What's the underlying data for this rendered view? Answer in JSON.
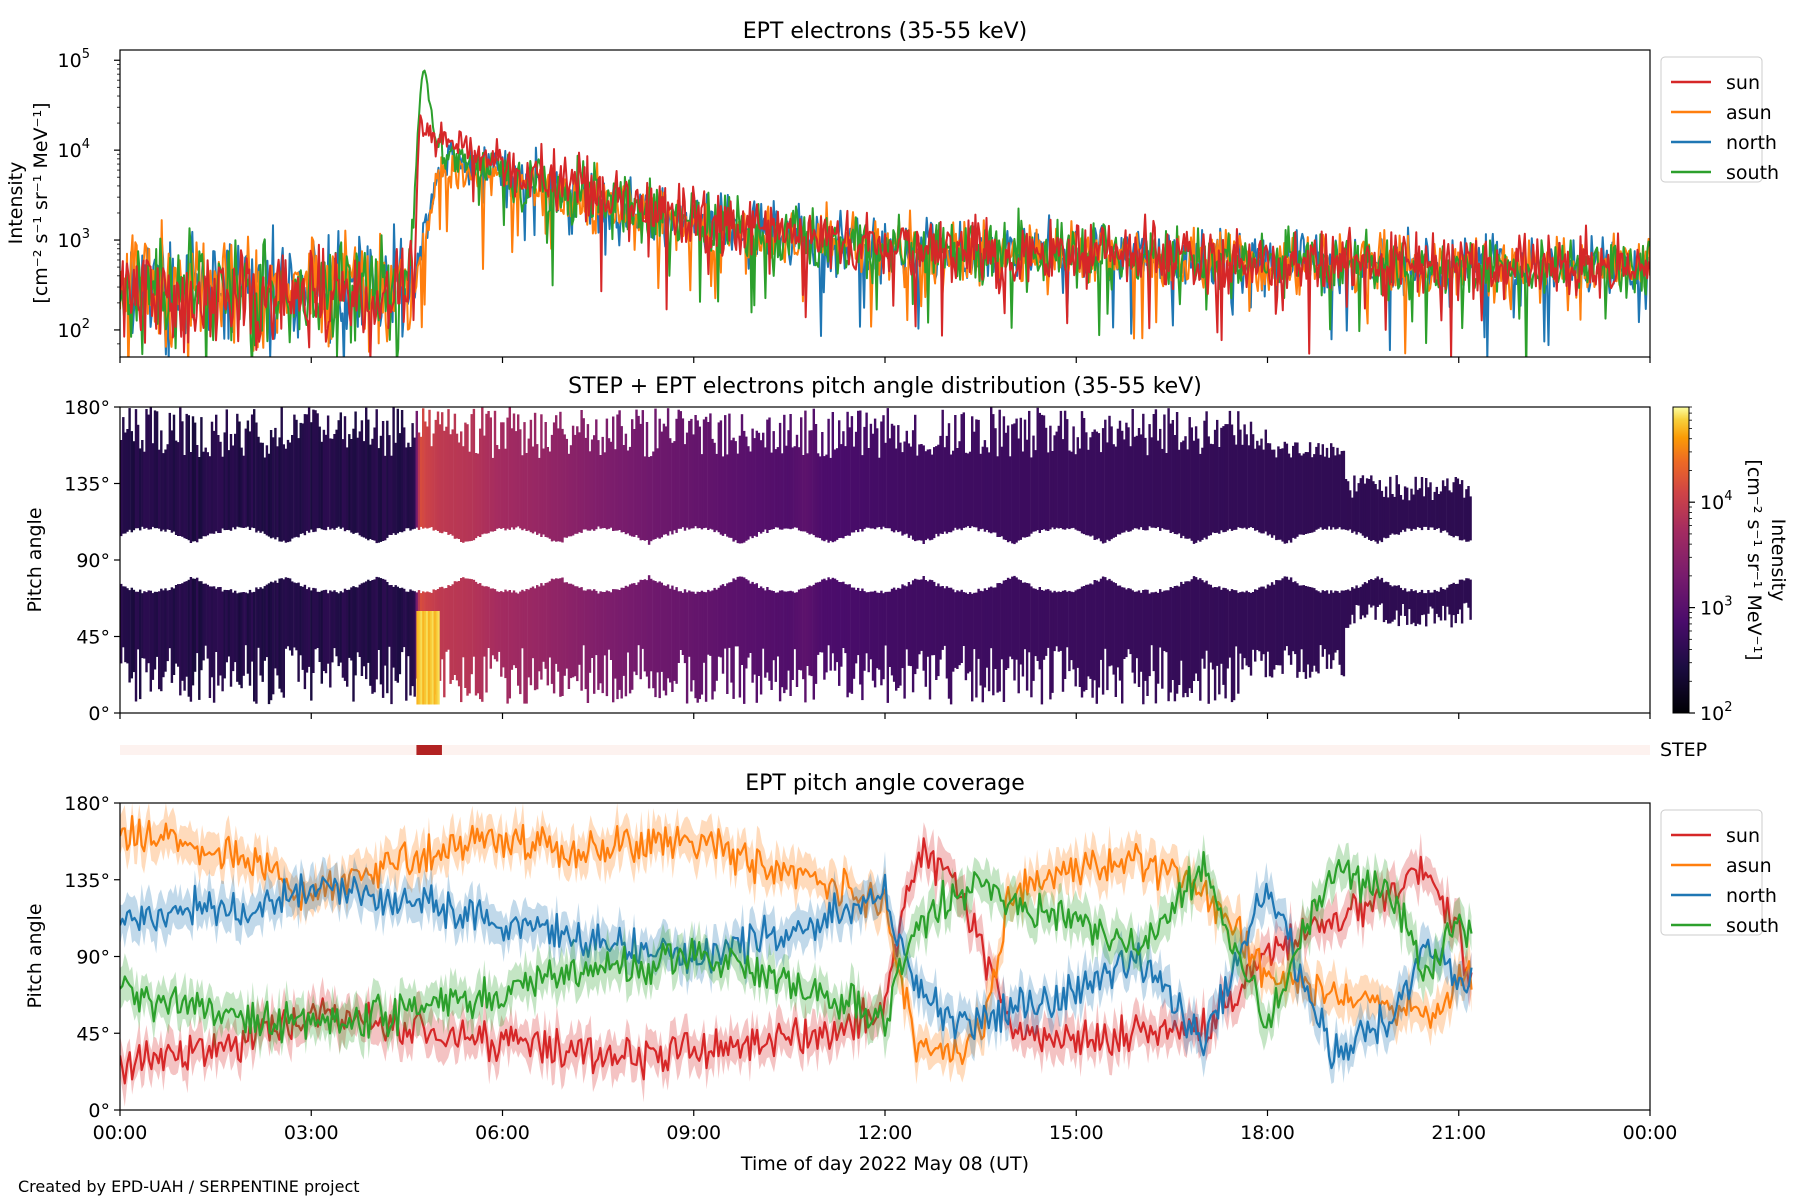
{
  "footer": {
    "credit": "Created by EPD-UAH / SERPENTINE project"
  },
  "colors": {
    "sun": "#d62728",
    "asun": "#ff7f0e",
    "north": "#1f77b4",
    "south": "#2ca02c",
    "step_bar": "#b22222",
    "step_track": "#fdf2ef"
  },
  "chart_data": [
    {
      "type": "line",
      "title": "EPT electrons (35-55 keV)",
      "xlabel": "",
      "ylabel": "Intensity",
      "ylabel_units": "[cm⁻² s⁻¹ sr⁻¹ MeV⁻¹]",
      "yscale": "log",
      "ylim": [
        50,
        130000
      ],
      "xlim_hours": [
        0,
        24
      ],
      "x_tick_labels": [
        "00:00",
        "03:00",
        "06:00",
        "09:00",
        "12:00",
        "15:00",
        "18:00",
        "21:00",
        "00:00"
      ],
      "y_tick_labels": [
        {
          "value": 100,
          "base": "10",
          "exp": "2"
        },
        {
          "value": 1000,
          "base": "10",
          "exp": "3"
        },
        {
          "value": 10000,
          "base": "10",
          "exp": "4"
        },
        {
          "value": 100000,
          "base": "10",
          "exp": "5"
        }
      ],
      "legend_position": "outside-right",
      "series": [
        {
          "name": "sun",
          "color": "#d62728",
          "x": [
            0,
            0.5,
            1,
            1.5,
            2,
            2.5,
            3,
            3.5,
            4,
            4.5,
            4.62,
            4.7,
            4.8,
            5.0,
            5.2,
            5.5,
            6,
            6.5,
            7,
            7.5,
            8,
            8.5,
            9,
            9.5,
            10,
            10.5,
            10.75,
            11,
            11.5,
            12,
            12.5,
            13,
            13.5,
            14,
            14.5,
            15,
            15.5,
            16,
            16.5,
            17,
            17.5,
            18,
            18.5,
            19,
            19.5,
            20,
            20.5,
            21,
            21.5,
            22,
            22.5,
            23,
            23.5,
            24
          ],
          "y": [
            220,
            240,
            230,
            250,
            240,
            250,
            240,
            250,
            240,
            250,
            500,
            20000,
            16000,
            12000,
            11000,
            10000,
            7000,
            5500,
            4200,
            3200,
            2600,
            2100,
            1800,
            1500,
            1300,
            1150,
            1500,
            1050,
            950,
            850,
            800,
            780,
            760,
            740,
            720,
            700,
            680,
            660,
            640,
            620,
            600,
            590,
            580,
            570,
            560,
            550,
            540,
            530,
            520,
            520,
            520,
            520,
            520,
            520
          ]
        },
        {
          "name": "asun",
          "color": "#ff7f0e",
          "x": [
            0,
            0.5,
            1,
            1.5,
            2,
            2.5,
            3,
            3.5,
            4,
            4.5,
            4.62,
            4.8,
            5.0,
            5.2,
            5.5,
            6,
            6.5,
            7,
            7.5,
            8,
            8.5,
            9,
            9.5,
            10,
            10.5,
            11,
            11.5,
            12,
            12.5,
            13,
            13.5,
            14,
            14.5,
            15,
            15.5,
            16,
            16.5,
            17,
            17.5,
            18,
            18.5,
            19,
            19.5,
            20,
            20.5,
            21,
            21.5,
            22,
            22.5,
            23,
            23.5,
            24
          ],
          "y": [
            300,
            320,
            300,
            320,
            310,
            320,
            310,
            320,
            310,
            320,
            330,
            1200,
            5000,
            6500,
            6000,
            5000,
            4000,
            3200,
            2500,
            2000,
            1700,
            1450,
            1250,
            1100,
            1000,
            920,
            860,
            800,
            770,
            750,
            730,
            710,
            690,
            670,
            650,
            630,
            610,
            590,
            570,
            560,
            550,
            540,
            530,
            520,
            510,
            500,
            500,
            500,
            500,
            500,
            500,
            500
          ]
        },
        {
          "name": "north",
          "color": "#1f77b4",
          "x": [
            0,
            0.5,
            1,
            1.5,
            2,
            2.5,
            3,
            3.5,
            4,
            4.5,
            4.62,
            4.8,
            5.0,
            5.2,
            5.5,
            6,
            6.5,
            7,
            7.5,
            8,
            8.5,
            9,
            9.5,
            10,
            10.5,
            11,
            11.5,
            12,
            12.5,
            13,
            13.5,
            14,
            14.5,
            15,
            15.5,
            16,
            16.5,
            17,
            17.5,
            18,
            18.5,
            19,
            19.5,
            20,
            20.5,
            21,
            21.5,
            22,
            22.5,
            23,
            23.5,
            24
          ],
          "y": [
            300,
            320,
            300,
            320,
            310,
            320,
            310,
            320,
            310,
            320,
            330,
            1500,
            6000,
            7500,
            7000,
            5800,
            4500,
            3500,
            2700,
            2200,
            1850,
            1550,
            1350,
            1200,
            1050,
            950,
            880,
            820,
            790,
            760,
            740,
            720,
            700,
            680,
            660,
            640,
            620,
            600,
            580,
            570,
            560,
            550,
            540,
            530,
            520,
            510,
            510,
            510,
            510,
            510,
            520,
            520
          ]
        },
        {
          "name": "south",
          "color": "#2ca02c",
          "x": [
            0,
            0.5,
            1,
            1.5,
            2,
            2.5,
            3,
            3.5,
            4,
            4.5,
            4.62,
            4.7,
            4.75,
            4.85,
            5.0,
            5.2,
            5.5,
            6,
            6.5,
            7,
            7.5,
            8,
            8.5,
            9,
            9.5,
            10,
            10.5,
            11,
            11.5,
            12,
            12.5,
            13,
            13.5,
            14,
            14.5,
            15,
            15.5,
            16,
            16.5,
            17,
            17.5,
            18,
            18.5,
            19,
            19.5,
            20,
            20.5,
            21,
            21.5,
            22,
            22.5,
            23,
            23.5,
            24
          ],
          "y": [
            290,
            300,
            290,
            300,
            300,
            300,
            300,
            300,
            300,
            310,
            2000,
            40000,
            90000,
            30000,
            12000,
            9000,
            7500,
            6000,
            4800,
            3700,
            2800,
            2200,
            1850,
            1550,
            1350,
            1200,
            1050,
            950,
            880,
            820,
            780,
            750,
            730,
            710,
            690,
            670,
            650,
            630,
            610,
            590,
            570,
            560,
            550,
            540,
            530,
            520,
            510,
            500,
            500,
            500,
            500,
            500,
            500,
            500
          ]
        }
      ]
    },
    {
      "type": "heatmap",
      "title": "STEP + EPT electrons pitch angle distribution (35-55 keV)",
      "xlabel": "",
      "ylabel": "Pitch angle",
      "ylim": [
        0,
        180
      ],
      "y_tick_labels": [
        "0°",
        "45°",
        "90°",
        "135°",
        "180°"
      ],
      "colorbar": {
        "label": "Intensity",
        "units": "[cm⁻² s⁻¹ sr⁻¹ MeV⁻¹]",
        "scale": "log",
        "range": [
          100,
          80000
        ],
        "ticks": [
          {
            "base": "10",
            "exp": "2"
          },
          {
            "base": "10",
            "exp": "3"
          },
          {
            "base": "10",
            "exp": "4"
          }
        ]
      },
      "data_extent_hours": [
        0,
        21.2
      ]
    },
    {
      "type": "bar",
      "label": "STEP",
      "coverage_hours": [
        4.65,
        5.05
      ]
    },
    {
      "type": "line",
      "title": "EPT pitch angle coverage",
      "xlabel": "Time of day 2022 May 08 (UT)",
      "ylabel": "Pitch angle",
      "ylim": [
        0,
        180
      ],
      "xlim_hours": [
        0,
        24
      ],
      "x_tick_labels": [
        "00:00",
        "03:00",
        "06:00",
        "09:00",
        "12:00",
        "15:00",
        "18:00",
        "21:00",
        "00:00"
      ],
      "y_tick_labels": [
        "0°",
        "45°",
        "90°",
        "135°",
        "180°"
      ],
      "legend_position": "outside-right",
      "series": [
        {
          "name": "sun",
          "color": "#d62728",
          "x": [
            0,
            1,
            2,
            3,
            4,
            5,
            6,
            7,
            8,
            9,
            10,
            11,
            12,
            12.5,
            13,
            13.5,
            14,
            15,
            16,
            17,
            18,
            19,
            20,
            20.5,
            21,
            21.2
          ],
          "y": [
            25,
            35,
            40,
            55,
            50,
            45,
            40,
            35,
            30,
            35,
            40,
            45,
            60,
            150,
            140,
            100,
            45,
            40,
            45,
            50,
            90,
            110,
            130,
            140,
            100,
            80
          ]
        },
        {
          "name": "asun",
          "color": "#ff7f0e",
          "x": [
            0,
            1,
            2,
            3,
            4,
            5,
            6,
            7,
            8,
            9,
            10,
            11,
            12,
            12.5,
            13,
            13.5,
            14,
            15,
            16,
            17,
            18,
            19,
            20,
            20.5,
            21,
            21.2
          ],
          "y": [
            165,
            155,
            150,
            125,
            140,
            150,
            160,
            150,
            155,
            160,
            145,
            135,
            120,
            40,
            35,
            45,
            130,
            140,
            145,
            130,
            80,
            70,
            60,
            55,
            75,
            80
          ]
        },
        {
          "name": "north",
          "color": "#1f77b4",
          "x": [
            0,
            1,
            2,
            3,
            4,
            5,
            6,
            7,
            8,
            9,
            10,
            11,
            12,
            12.5,
            13,
            13.5,
            14,
            15,
            16,
            17,
            18,
            19,
            20,
            20.5,
            21,
            21.2
          ],
          "y": [
            110,
            120,
            115,
            130,
            125,
            120,
            110,
            100,
            95,
            90,
            100,
            110,
            125,
            70,
            55,
            50,
            60,
            70,
            90,
            40,
            130,
            35,
            55,
            100,
            70,
            75
          ]
        },
        {
          "name": "south",
          "color": "#2ca02c",
          "x": [
            0,
            1,
            2,
            3,
            4,
            5,
            6,
            7,
            8,
            9,
            10,
            11,
            12,
            12.5,
            13,
            13.5,
            14,
            15,
            16,
            17,
            18,
            19,
            20,
            20.5,
            21,
            21.2
          ],
          "y": [
            70,
            60,
            55,
            50,
            55,
            60,
            70,
            80,
            85,
            90,
            80,
            70,
            55,
            110,
            125,
            130,
            120,
            110,
            95,
            140,
            50,
            140,
            125,
            80,
            110,
            105
          ]
        }
      ]
    }
  ]
}
